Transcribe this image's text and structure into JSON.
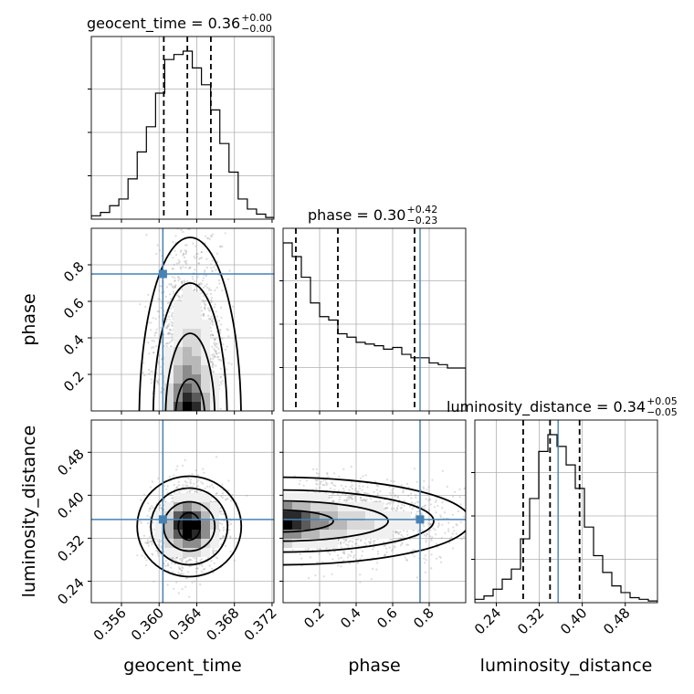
{
  "chart_data": {
    "type": "corner",
    "parameters": [
      "geocent_time",
      "phase",
      "luminosity_distance"
    ],
    "truths": {
      "geocent_time": 0.3604,
      "phase": 0.75,
      "luminosity_distance": 0.355
    },
    "truth_color": "#4682b4",
    "titles": {
      "geocent_time": {
        "label": "geocent_time = 0.36",
        "plus": "+0.00",
        "minus": "−0.00"
      },
      "phase": {
        "label": "phase = 0.30",
        "plus": "+0.42",
        "minus": "−0.23"
      },
      "luminosity_distance": {
        "label": "luminosity_distance = 0.34",
        "plus": "+0.05",
        "minus": "−0.05"
      }
    },
    "axes": {
      "geocent_time": {
        "range": [
          0.3528,
          0.3722
        ],
        "ticks": [
          0.356,
          0.36,
          0.364,
          0.368,
          0.372
        ],
        "tick_labels": [
          "0.356",
          "0.360",
          "0.364",
          "0.368",
          "0.372"
        ]
      },
      "phase": {
        "range": [
          0.0,
          1.0
        ],
        "ticks": [
          0.2,
          0.4,
          0.6,
          0.8
        ],
        "tick_labels": [
          "0.2",
          "0.4",
          "0.6",
          "0.8"
        ]
      },
      "luminosity_distance": {
        "range": [
          0.2,
          0.54
        ],
        "ticks": [
          0.24,
          0.32,
          0.4,
          0.48
        ],
        "tick_labels": [
          "0.24",
          "0.32",
          "0.40",
          "0.48"
        ]
      }
    },
    "histograms": {
      "geocent_time": {
        "bin_start": 0.3528,
        "bin_width": 0.000975,
        "counts": [
          0.02,
          0.04,
          0.08,
          0.12,
          0.24,
          0.4,
          0.55,
          0.75,
          0.95,
          0.98,
          1.0,
          0.9,
          0.8,
          0.65,
          0.45,
          0.28,
          0.12,
          0.06,
          0.03,
          0.01
        ],
        "quantiles": [
          0.3605,
          0.363,
          0.3655
        ]
      },
      "phase": {
        "bin_start": 0.0,
        "bin_width": 0.05,
        "counts": [
          0.98,
          0.9,
          0.78,
          0.63,
          0.55,
          0.53,
          0.45,
          0.43,
          0.4,
          0.39,
          0.38,
          0.36,
          0.37,
          0.33,
          0.31,
          0.31,
          0.28,
          0.27,
          0.25,
          0.25
        ],
        "quantiles": [
          0.07,
          0.3,
          0.72
        ]
      },
      "luminosity_distance": {
        "bin_start": 0.2,
        "bin_width": 0.017,
        "counts": [
          0.02,
          0.04,
          0.08,
          0.14,
          0.2,
          0.38,
          0.62,
          0.9,
          1.0,
          0.93,
          0.82,
          0.68,
          0.45,
          0.28,
          0.18,
          0.1,
          0.06,
          0.03,
          0.02,
          0.01
        ],
        "quantiles": [
          0.29,
          0.34,
          0.395
        ]
      }
    },
    "scatter_panels": [
      {
        "x": "geocent_time",
        "y": "phase"
      },
      {
        "x": "geocent_time",
        "y": "luminosity_distance"
      },
      {
        "x": "phase",
        "y": "luminosity_distance"
      }
    ],
    "grid": true,
    "plot_style": "corner plot with 1D marginal histograms, 2D contours and scatter"
  }
}
